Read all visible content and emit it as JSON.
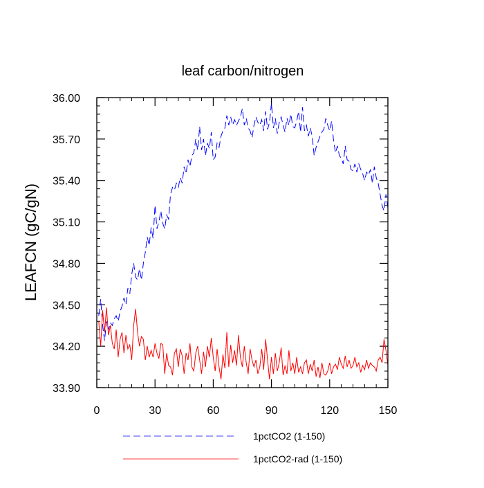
{
  "chart_data": {
    "type": "line",
    "title": "leaf carbon/nitrogen",
    "xlabel": "",
    "ylabel": "LEAFCN  (gC/gN)",
    "xlim": [
      0,
      150
    ],
    "ylim": [
      33.9,
      36.0
    ],
    "x_ticks": [
      0,
      30,
      60,
      90,
      120,
      150
    ],
    "y_ticks": [
      33.9,
      34.2,
      34.5,
      34.8,
      35.1,
      35.4,
      35.7,
      36.0
    ],
    "x_tick_labels": [
      "0",
      "30",
      "60",
      "90",
      "120",
      "150"
    ],
    "y_tick_labels": [
      "33.90",
      "34.20",
      "34.50",
      "34.80",
      "35.10",
      "35.40",
      "35.70",
      "36.00"
    ],
    "grid": false,
    "legend_position": "bottom",
    "series": [
      {
        "name": "1pctCO2 (1-150)",
        "color": "#0000ff",
        "dash": "dashed",
        "x": [
          1,
          2,
          3,
          4,
          5,
          6,
          7,
          8,
          9,
          10,
          11,
          12,
          13,
          14,
          15,
          16,
          17,
          18,
          19,
          20,
          21,
          22,
          23,
          24,
          25,
          26,
          27,
          28,
          29,
          30,
          31,
          32,
          33,
          34,
          35,
          36,
          37,
          38,
          39,
          40,
          41,
          42,
          43,
          44,
          45,
          46,
          47,
          48,
          49,
          50,
          51,
          52,
          53,
          54,
          55,
          56,
          57,
          58,
          59,
          60,
          61,
          62,
          63,
          64,
          65,
          66,
          67,
          68,
          69,
          70,
          71,
          72,
          73,
          74,
          75,
          76,
          77,
          78,
          79,
          80,
          81,
          82,
          83,
          84,
          85,
          86,
          87,
          88,
          89,
          90,
          91,
          92,
          93,
          94,
          95,
          96,
          97,
          98,
          99,
          100,
          101,
          102,
          103,
          104,
          105,
          106,
          107,
          108,
          109,
          110,
          111,
          112,
          113,
          114,
          115,
          116,
          117,
          118,
          119,
          120,
          121,
          122,
          123,
          124,
          125,
          126,
          127,
          128,
          129,
          130,
          131,
          132,
          133,
          134,
          135,
          136,
          137,
          138,
          139,
          140,
          141,
          142,
          143,
          144,
          145,
          146,
          147,
          148,
          149,
          150
        ],
        "values": [
          34.42,
          34.54,
          34.35,
          34.24,
          34.38,
          34.32,
          34.37,
          34.35,
          34.4,
          34.42,
          34.38,
          34.45,
          34.49,
          34.55,
          34.5,
          34.62,
          34.58,
          34.72,
          34.8,
          34.7,
          34.68,
          34.76,
          34.68,
          34.8,
          34.88,
          34.99,
          34.93,
          35.06,
          34.98,
          35.22,
          35.05,
          35.1,
          35.18,
          35.09,
          35.05,
          35.15,
          35.12,
          35.3,
          35.35,
          35.33,
          35.38,
          35.35,
          35.42,
          35.38,
          35.5,
          35.45,
          35.55,
          35.5,
          35.58,
          35.6,
          35.7,
          35.62,
          35.79,
          35.62,
          35.7,
          35.58,
          35.67,
          35.63,
          35.75,
          35.55,
          35.57,
          35.67,
          35.64,
          35.72,
          35.76,
          35.78,
          35.87,
          35.8,
          35.86,
          35.8,
          35.84,
          35.8,
          35.83,
          35.86,
          35.92,
          35.8,
          35.85,
          35.78,
          35.76,
          35.71,
          35.8,
          35.86,
          35.82,
          35.8,
          35.84,
          35.76,
          35.9,
          35.77,
          35.82,
          35.96,
          35.78,
          35.85,
          35.74,
          35.82,
          35.86,
          35.8,
          35.75,
          35.85,
          35.8,
          35.88,
          35.79,
          35.78,
          35.83,
          35.9,
          35.75,
          35.93,
          35.76,
          35.8,
          35.72,
          35.78,
          35.72,
          35.58,
          35.64,
          35.68,
          35.72,
          35.75,
          35.77,
          35.85,
          35.8,
          35.76,
          35.83,
          35.69,
          35.6,
          35.65,
          35.58,
          35.56,
          35.52,
          35.65,
          35.55,
          35.54,
          35.48,
          35.47,
          35.52,
          35.46,
          35.52,
          35.48,
          35.45,
          35.4,
          35.46,
          35.44,
          35.48,
          35.38,
          35.5,
          35.42,
          35.38,
          35.3,
          35.22,
          35.18,
          35.3,
          35.2
        ]
      },
      {
        "name": "1pctCO2-rad (1-150)",
        "color": "#ff0000",
        "dash": "solid",
        "x": [
          1,
          2,
          3,
          4,
          5,
          6,
          7,
          8,
          9,
          10,
          11,
          12,
          13,
          14,
          15,
          16,
          17,
          18,
          19,
          20,
          21,
          22,
          23,
          24,
          25,
          26,
          27,
          28,
          29,
          30,
          31,
          32,
          33,
          34,
          35,
          36,
          37,
          38,
          39,
          40,
          41,
          42,
          43,
          44,
          45,
          46,
          47,
          48,
          49,
          50,
          51,
          52,
          53,
          54,
          55,
          56,
          57,
          58,
          59,
          60,
          61,
          62,
          63,
          64,
          65,
          66,
          67,
          68,
          69,
          70,
          71,
          72,
          73,
          74,
          75,
          76,
          77,
          78,
          79,
          80,
          81,
          82,
          83,
          84,
          85,
          86,
          87,
          88,
          89,
          90,
          91,
          92,
          93,
          94,
          95,
          96,
          97,
          98,
          99,
          100,
          101,
          102,
          103,
          104,
          105,
          106,
          107,
          108,
          109,
          110,
          111,
          112,
          113,
          114,
          115,
          116,
          117,
          118,
          119,
          120,
          121,
          122,
          123,
          124,
          125,
          126,
          127,
          128,
          129,
          130,
          131,
          132,
          133,
          134,
          135,
          136,
          137,
          138,
          139,
          140,
          141,
          142,
          143,
          144,
          145,
          146,
          147,
          148,
          149,
          150
        ],
        "values": [
          34.38,
          34.2,
          34.46,
          34.3,
          34.48,
          34.28,
          34.35,
          34.22,
          34.18,
          34.32,
          34.12,
          34.25,
          34.3,
          34.15,
          34.28,
          34.18,
          34.21,
          34.1,
          34.35,
          34.47,
          34.3,
          34.2,
          34.27,
          34.25,
          34.1,
          34.2,
          34.12,
          34.17,
          34.12,
          34.22,
          34.15,
          34.11,
          34.22,
          34.21,
          34.0,
          34.15,
          34.06,
          34.05,
          33.99,
          34.15,
          34.18,
          34.05,
          34.18,
          34.13,
          34.0,
          34.15,
          34.1,
          34.22,
          34.05,
          34.02,
          34.15,
          34.2,
          34.1,
          34.0,
          34.16,
          34.05,
          34.2,
          34.12,
          34.26,
          34.12,
          34.02,
          34.18,
          34.05,
          33.96,
          34.14,
          34.04,
          34.3,
          34.05,
          34.21,
          34.08,
          34.17,
          34.06,
          34.28,
          34.12,
          34.05,
          34.2,
          34.08,
          34.0,
          34.18,
          34.1,
          34.05,
          34.1,
          34.0,
          34.05,
          34.18,
          34.03,
          34.25,
          34.1,
          33.96,
          34.12,
          34.0,
          34.15,
          34.02,
          34.08,
          34.19,
          33.99,
          34.06,
          34.0,
          34.17,
          34.02,
          34.08,
          34.0,
          34.12,
          34.01,
          34.05,
          34.0,
          34.08,
          34.1,
          34.0,
          34.07,
          34.02,
          34.1,
          33.98,
          34.05,
          33.97,
          34.08,
          34.0,
          33.99,
          34.02,
          34.08,
          34.0,
          34.05,
          34.07,
          34.03,
          34.12,
          34.07,
          34.04,
          34.13,
          34.05,
          34.1,
          34.04,
          34.06,
          34.12,
          34.05,
          34.08,
          34.01,
          34.06,
          34.03,
          34.1,
          34.04,
          34.08,
          34.06,
          34.05,
          34.02,
          34.1,
          34.12,
          34.08,
          34.25,
          34.17,
          34.06
        ]
      }
    ]
  }
}
